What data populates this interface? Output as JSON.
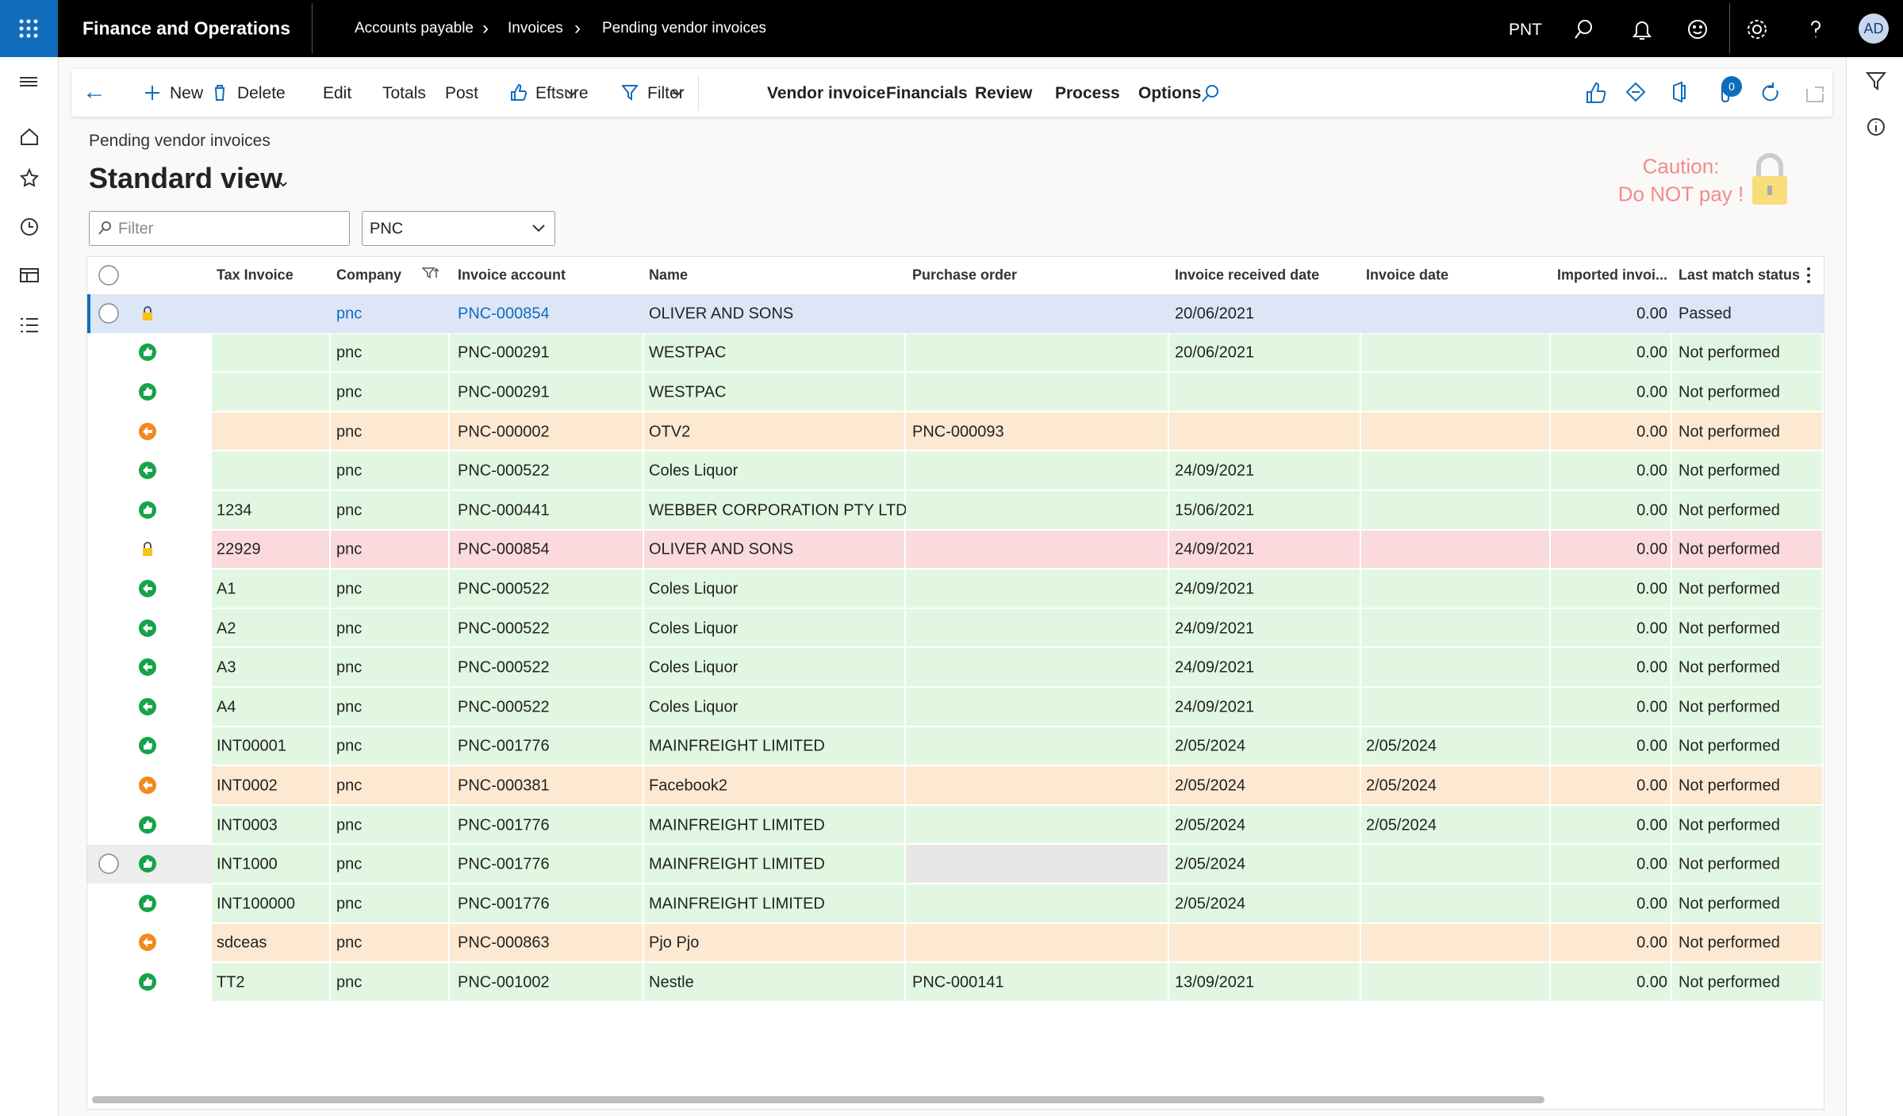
{
  "header": {
    "app": "Finance and Operations",
    "breadcrumbs": [
      "Accounts payable",
      "Invoices",
      "Pending vendor invoices"
    ],
    "company": "PNT",
    "user": "AD"
  },
  "toolbar": {
    "actions": [
      "New",
      "Delete",
      "Edit",
      "Totals",
      "Post",
      "Eftsure",
      "Filter",
      "Vendor invoice",
      "Financials",
      "Review",
      "Process",
      "Options"
    ],
    "badge": "0"
  },
  "page": {
    "caption": "Pending vendor invoices",
    "view": "Standard view",
    "caution": [
      "Caution:",
      "Do NOT pay !"
    ]
  },
  "filters": {
    "search_placeholder": "Filter",
    "company": "PNC"
  },
  "table": {
    "columns": [
      "Tax Invoice",
      "Company",
      "Invoice account",
      "Name",
      "Purchase order",
      "Invoice received date",
      "Invoice date",
      "Imported invoi...",
      "Last match status"
    ],
    "rows": [
      [
        null,
        "pnc",
        "PNC-000854",
        "OLIVER AND SONS",
        null,
        "20/06/2021",
        null,
        "0.00",
        "Passed"
      ],
      [
        null,
        "pnc",
        "PNC-000291",
        "WESTPAC",
        null,
        "20/06/2021",
        null,
        "0.00",
        "Not performed"
      ],
      [
        null,
        "pnc",
        "PNC-000291",
        "WESTPAC",
        null,
        null,
        null,
        "0.00",
        "Not performed"
      ],
      [
        null,
        "pnc",
        "PNC-000002",
        "OTV2",
        "PNC-000093",
        null,
        null,
        "0.00",
        "Not performed"
      ],
      [
        null,
        "pnc",
        "PNC-000522",
        "Coles Liquor",
        null,
        "24/09/2021",
        null,
        "0.00",
        "Not performed"
      ],
      [
        "1234",
        "pnc",
        "PNC-000441",
        "WEBBER CORPORATION PTY LTD",
        null,
        "15/06/2021",
        null,
        "0.00",
        "Not performed"
      ],
      [
        "22929",
        "pnc",
        "PNC-000854",
        "OLIVER AND SONS",
        null,
        "24/09/2021",
        null,
        "0.00",
        "Not performed"
      ],
      [
        "A1",
        "pnc",
        "PNC-000522",
        "Coles Liquor",
        null,
        "24/09/2021",
        null,
        "0.00",
        "Not performed"
      ],
      [
        "A2",
        "pnc",
        "PNC-000522",
        "Coles Liquor",
        null,
        "24/09/2021",
        null,
        "0.00",
        "Not performed"
      ],
      [
        "A3",
        "pnc",
        "PNC-000522",
        "Coles Liquor",
        null,
        "24/09/2021",
        null,
        "0.00",
        "Not performed"
      ],
      [
        "A4",
        "pnc",
        "PNC-000522",
        "Coles Liquor",
        null,
        "24/09/2021",
        null,
        "0.00",
        "Not performed"
      ],
      [
        "INT00001",
        "pnc",
        "PNC-001776",
        "MAINFREIGHT LIMITED",
        null,
        "2/05/2024",
        "2/05/2024",
        "0.00",
        "Not performed"
      ],
      [
        "INT0002",
        "pnc",
        "PNC-000381",
        "Facebook2",
        null,
        "2/05/2024",
        "2/05/2024",
        "0.00",
        "Not performed"
      ],
      [
        "INT0003",
        "pnc",
        "PNC-001776",
        "MAINFREIGHT LIMITED",
        null,
        "2/05/2024",
        "2/05/2024",
        "0.00",
        "Not performed"
      ],
      [
        "INT1000",
        "pnc",
        "PNC-001776",
        "MAINFREIGHT LIMITED",
        null,
        "2/05/2024",
        null,
        "0.00",
        "Not performed"
      ],
      [
        "INT100000",
        "pnc",
        "PNC-001776",
        "MAINFREIGHT LIMITED",
        null,
        "2/05/2024",
        null,
        "0.00",
        "Not performed"
      ],
      [
        "sdceas",
        "pnc",
        "PNC-000863",
        "Pjo Pjo",
        null,
        null,
        null,
        "0.00",
        "Not performed"
      ],
      [
        "TT2",
        "pnc",
        "PNC-001002",
        "Nestle",
        "PNC-000141",
        "13/09/2021",
        null,
        "0.00",
        "Not performed"
      ]
    ],
    "row_styles": [
      {
        "color": "#dde6f7",
        "icon": "lock",
        "selected": true
      },
      {
        "color": "#e2f7e2",
        "icon": "thumb"
      },
      {
        "color": "#e2f7e2",
        "icon": "thumb"
      },
      {
        "color": "#fde9d2",
        "icon": "arrow-orange"
      },
      {
        "color": "#e2f7e2",
        "icon": "arrow-green"
      },
      {
        "color": "#e2f7e2",
        "icon": "thumb"
      },
      {
        "color": "#fadadd",
        "icon": "lock"
      },
      {
        "color": "#e2f7e2",
        "icon": "arrow-green"
      },
      {
        "color": "#e2f7e2",
        "icon": "arrow-green"
      },
      {
        "color": "#e2f7e2",
        "icon": "arrow-green"
      },
      {
        "color": "#e2f7e2",
        "icon": "arrow-green"
      },
      {
        "color": "#e2f7e2",
        "icon": "thumb"
      },
      {
        "color": "#fde9d2",
        "icon": "arrow-orange"
      },
      {
        "color": "#e2f7e2",
        "icon": "thumb"
      },
      {
        "color": "#e2f7e2",
        "icon": "thumb",
        "hover": true
      },
      {
        "color": "#e2f7e2",
        "icon": "thumb"
      },
      {
        "color": "#fde9d2",
        "icon": "arrow-orange"
      },
      {
        "color": "#e2f7e2",
        "icon": "thumb"
      }
    ]
  }
}
